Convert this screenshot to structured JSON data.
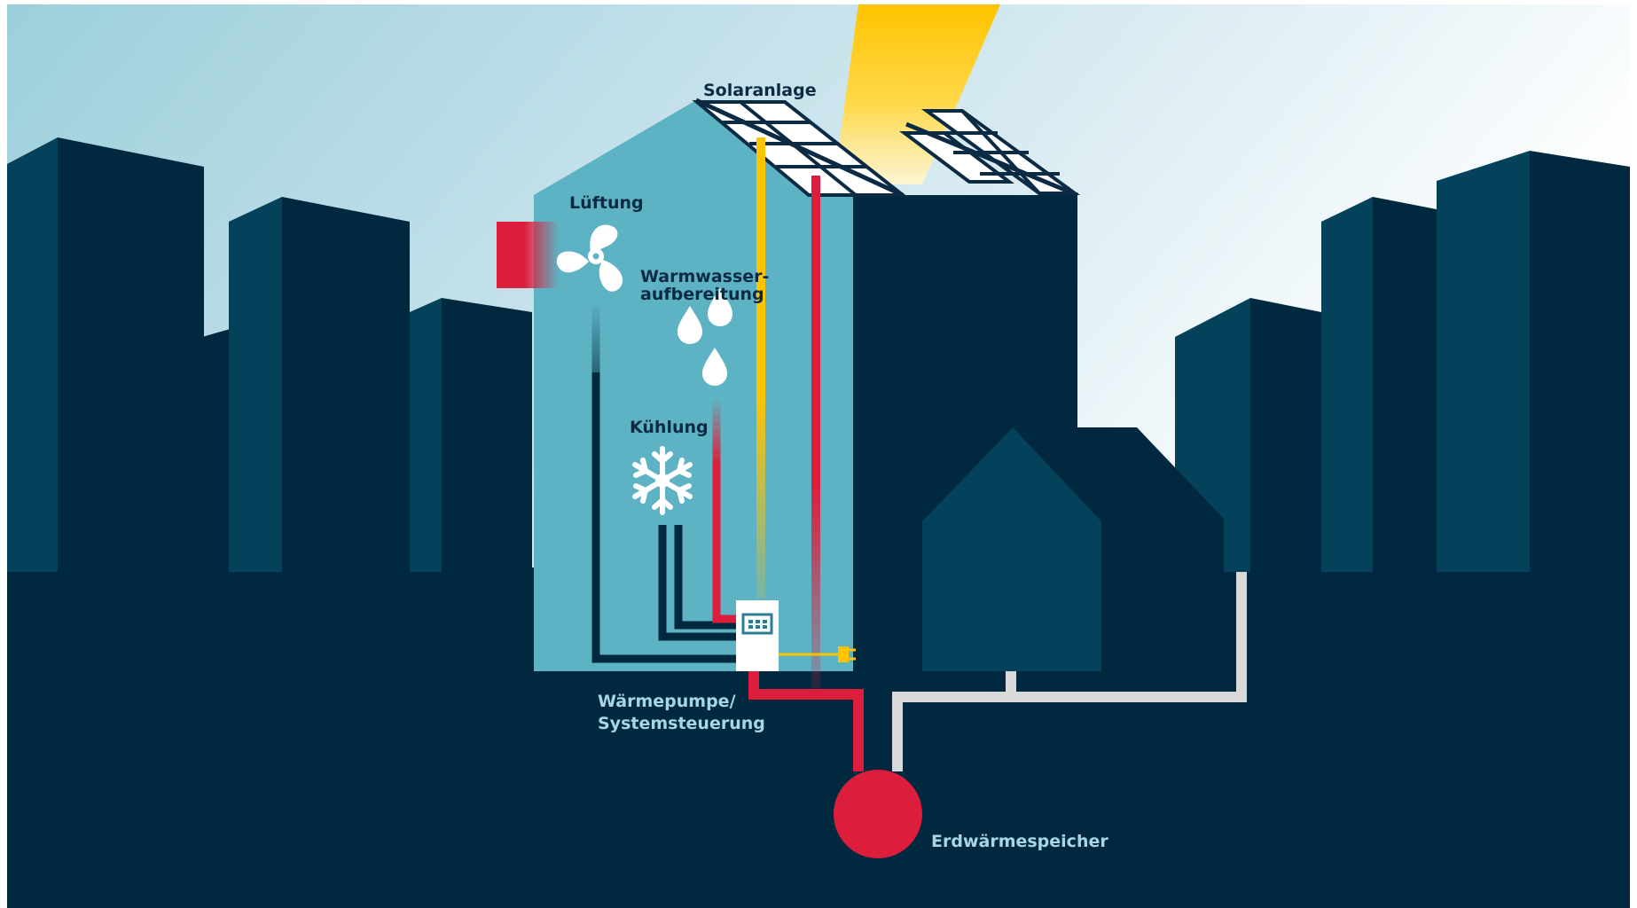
{
  "labels": {
    "solar": "Solaranlage",
    "ventilation": "Lüftung",
    "hot_water_line1": "Warmwasser-",
    "hot_water_line2": "aufbereitung",
    "cooling": "Kühlung",
    "heat_pump_line1": "Wärmepumpe/",
    "heat_pump_line2": "Systemsteuerung",
    "storage": "Erdwärmespeicher"
  },
  "colors": {
    "sky_left": "#9fcfdc",
    "sky_right": "#ffffff",
    "ground": "#002940",
    "building_front": "#03425a",
    "building_side": "#002940",
    "house_facade": "#5db3c3",
    "sun_beam": "#ffc400",
    "heat_red": "#dc1e3c",
    "cool_line": "#002940",
    "ground_pipe": "#d9d9d9",
    "icon_white": "#ffffff"
  },
  "icons": [
    "sun-beam",
    "solar-panel-icon",
    "fan-icon",
    "water-drops-icon",
    "snowflake-icon",
    "heat-pump-unit-icon",
    "power-plug-icon",
    "storage-sphere-icon"
  ]
}
